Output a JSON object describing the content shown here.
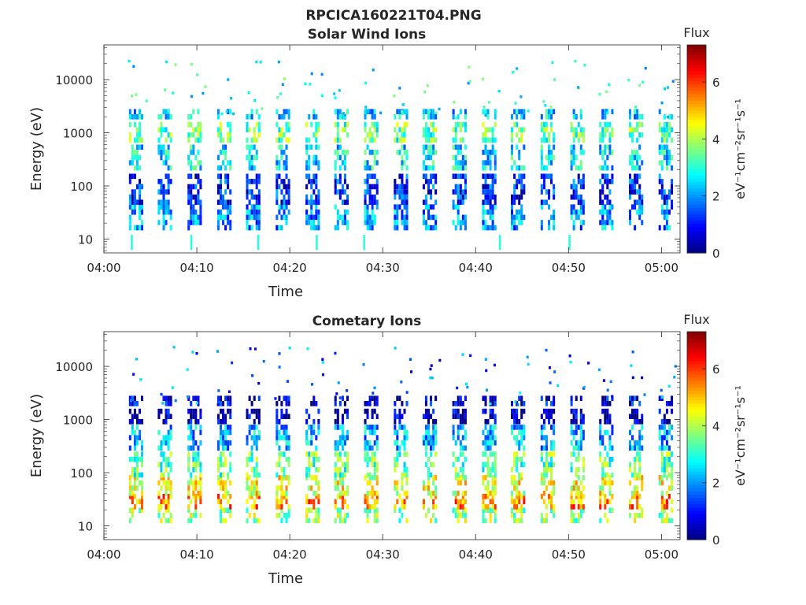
{
  "figure_title": "RPCICA160221T04.PNG",
  "chart_data": [
    {
      "type": "heatmap",
      "title": "Solar Wind Ions",
      "xlabel": "Time",
      "ylabel": "Energy (eV)",
      "y_scale": "log",
      "ylim": [
        5.5,
        45000
      ],
      "xlim": [
        "04:00",
        "05:02"
      ],
      "x_ticks": [
        "04:00",
        "04:10",
        "04:20",
        "04:30",
        "04:40",
        "04:50",
        "05:00"
      ],
      "y_ticks": [
        10,
        100,
        1000,
        10000
      ],
      "y_tick_labels": [
        "10",
        "100",
        "1000",
        "10000"
      ],
      "colorbar": {
        "title": "Flux",
        "label": "eV⁻¹cm⁻²sr⁻¹s⁻¹",
        "range": [
          0,
          7.3
        ],
        "ticks": [
          0,
          2,
          4,
          6
        ],
        "tick_labels": [
          "0",
          "2",
          "4",
          "6"
        ],
        "colormap": "jet"
      },
      "sweep_start_minutes": [
        3.2,
        6.3,
        9.5,
        12.7,
        15.8,
        19.0,
        22.2,
        25.3,
        28.5,
        31.7,
        34.8,
        38.0,
        41.2,
        44.3,
        47.5,
        50.7,
        53.8,
        57.0,
        60.2
      ],
      "bands": [
        {
          "energy_min_eV": 17,
          "energy_max_eV": 45,
          "flux": 2.0
        },
        {
          "energy_min_eV": 50,
          "energy_max_eV": 170,
          "flux": 1.2
        },
        {
          "energy_min_eV": 200,
          "energy_max_eV": 600,
          "flux": 2.6
        },
        {
          "energy_min_eV": 700,
          "energy_max_eV": 1600,
          "flux": 3.4
        },
        {
          "energy_min_eV": 1800,
          "energy_max_eV": 2800,
          "flux": 2.4
        }
      ],
      "marker_times_minutes": [
        2.9,
        9.3,
        16.5,
        22.8,
        27.9,
        42.5,
        50.0
      ],
      "marker_flux": 3.0,
      "background_color": "#ffffff"
    },
    {
      "type": "heatmap",
      "title": "Cometary Ions",
      "xlabel": "Time",
      "ylabel": "Energy (eV)",
      "y_scale": "log",
      "ylim": [
        5.5,
        45000
      ],
      "xlim": [
        "04:00",
        "05:02"
      ],
      "x_ticks": [
        "04:00",
        "04:10",
        "04:20",
        "04:30",
        "04:40",
        "04:50",
        "05:00"
      ],
      "y_ticks": [
        10,
        100,
        1000,
        10000
      ],
      "y_tick_labels": [
        "10",
        "100",
        "1000",
        "10000"
      ],
      "colorbar": {
        "title": "Flux",
        "label": "eV⁻¹cm⁻²sr⁻¹s⁻¹",
        "range": [
          0,
          7.3
        ],
        "ticks": [
          0,
          2,
          4,
          6
        ],
        "tick_labels": [
          "0",
          "2",
          "4",
          "6"
        ],
        "colormap": "jet"
      },
      "sweep_start_minutes": [
        3.2,
        6.3,
        9.5,
        12.7,
        15.8,
        19.0,
        22.2,
        25.3,
        28.5,
        31.7,
        34.8,
        38.0,
        41.2,
        44.3,
        47.5,
        50.7,
        53.8,
        57.0,
        60.2
      ],
      "bands": [
        {
          "energy_min_eV": 13,
          "energy_max_eV": 22,
          "flux": 3.8
        },
        {
          "energy_min_eV": 22,
          "energy_max_eV": 40,
          "flux": 5.3
        },
        {
          "energy_min_eV": 40,
          "energy_max_eV": 90,
          "flux": 4.4
        },
        {
          "energy_min_eV": 90,
          "energy_max_eV": 250,
          "flux": 3.4
        },
        {
          "energy_min_eV": 300,
          "energy_max_eV": 800,
          "flux": 2.2
        },
        {
          "energy_min_eV": 900,
          "energy_max_eV": 1600,
          "flux": 0.4
        },
        {
          "energy_min_eV": 1800,
          "energy_max_eV": 2800,
          "flux": 0.6
        }
      ],
      "marker_times_minutes": [],
      "marker_flux": 0,
      "background_color": "#ffffff"
    }
  ]
}
